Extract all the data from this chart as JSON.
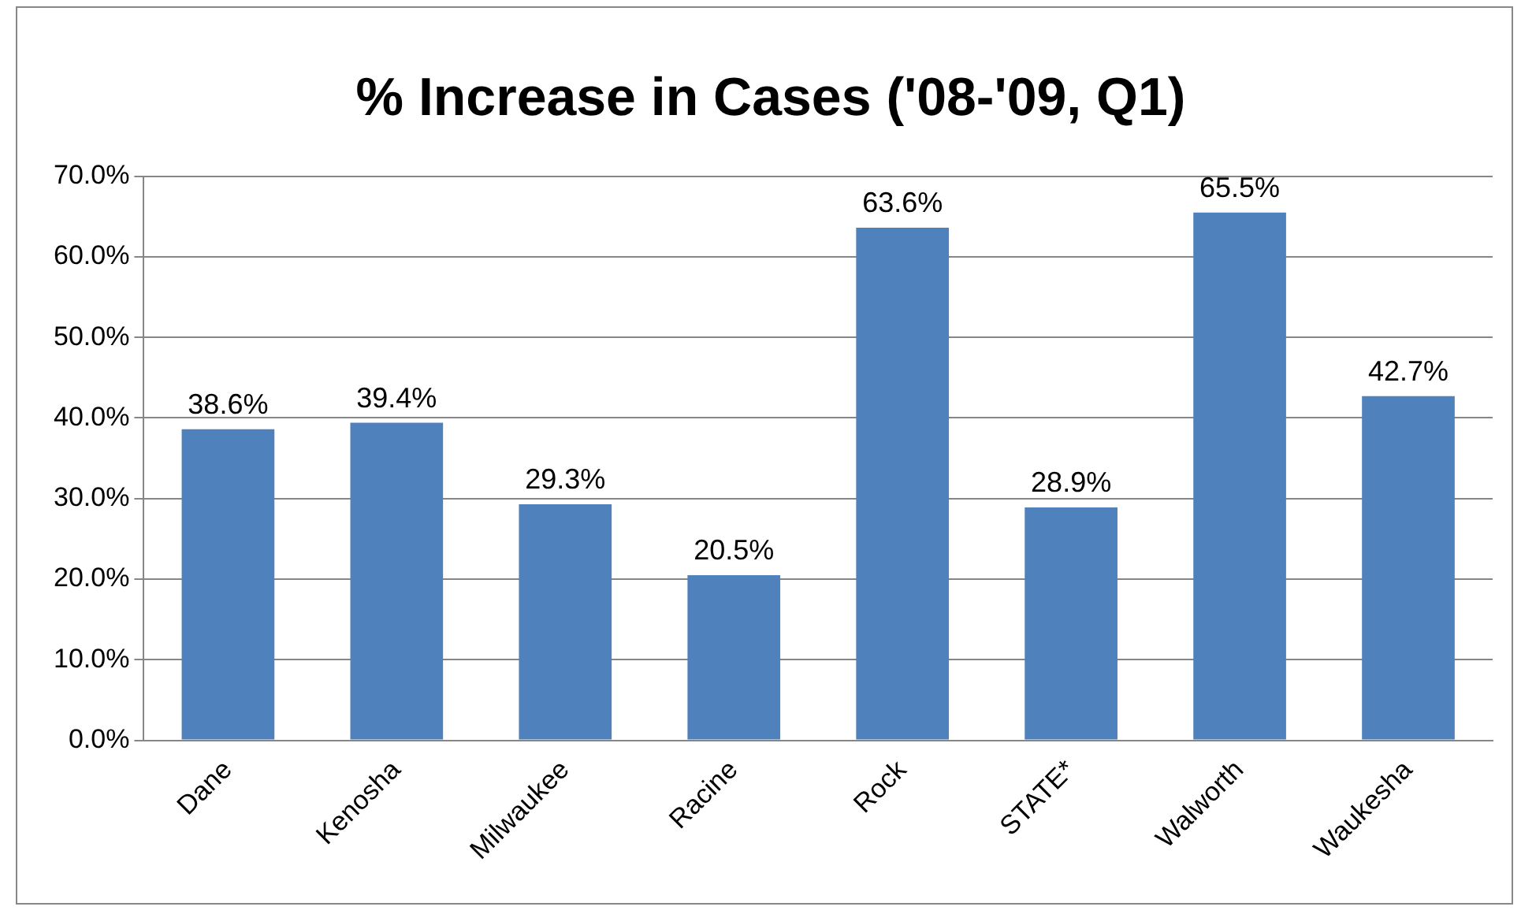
{
  "chart_data": {
    "type": "bar",
    "title": "% Increase in Cases ('08-'09, Q1)",
    "categories": [
      "Dane",
      "Kenosha",
      "Milwaukee",
      "Racine",
      "Rock",
      "STATE*",
      "Walworth",
      "Waukesha"
    ],
    "values": [
      38.6,
      39.4,
      29.3,
      20.5,
      63.6,
      28.9,
      65.5,
      42.7
    ],
    "value_labels": [
      "38.6%",
      "39.4%",
      "29.3%",
      "20.5%",
      "63.6%",
      "28.9%",
      "65.5%",
      "42.7%"
    ],
    "color": "#4f81bd",
    "ylim": [
      0,
      70
    ],
    "yticks": [
      {
        "value": 0,
        "label": "0.0%"
      },
      {
        "value": 10,
        "label": "10.0%"
      },
      {
        "value": 20,
        "label": "20.0%"
      },
      {
        "value": 30,
        "label": "30.0%"
      },
      {
        "value": 40,
        "label": "40.0%"
      },
      {
        "value": 50,
        "label": "50.0%"
      },
      {
        "value": 60,
        "label": "60.0%"
      },
      {
        "value": 70,
        "label": "70.0%"
      }
    ],
    "grid": "y",
    "legend": false
  }
}
